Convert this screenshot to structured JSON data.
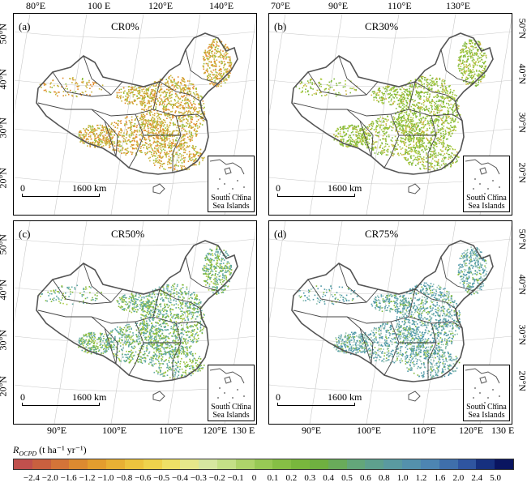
{
  "top_lon_left": [
    "80°E",
    "100 E",
    "120°E",
    "140°E"
  ],
  "top_lon_right": [
    "70°E",
    "90°E",
    "110°E",
    "130°E"
  ],
  "bottom_lon_left": [
    "90°E",
    "100°E",
    "110°E",
    "120°E",
    "130 E"
  ],
  "bottom_lon_right": [
    "90°E",
    "100°E",
    "110°E",
    "120°E",
    "130 E"
  ],
  "lat_left_top": [
    "50°N",
    "40°N",
    "30°N",
    "20°N"
  ],
  "lat_left_bottom": [
    "50°N",
    "40°N",
    "30°N",
    "20°N"
  ],
  "lat_right_top": [
    "50°N",
    "40°N",
    "30°N",
    "20°N"
  ],
  "lat_right_bottom": [
    "50°N",
    "40°N",
    "30°N",
    "20°N"
  ],
  "panels": [
    {
      "letter": "(a)",
      "title": "CR0%",
      "dominant": "#c9b33a",
      "secondary": "#e08a2a",
      "tertiary": "#8fbf3a"
    },
    {
      "letter": "(b)",
      "title": "CR30%",
      "dominant": "#7fb83a",
      "secondary": "#a9c93c",
      "tertiary": "#c9b33a"
    },
    {
      "letter": "(c)",
      "title": "CR50%",
      "dominant": "#5fa8a0",
      "secondary": "#7fb83a",
      "tertiary": "#a9c93c"
    },
    {
      "letter": "(d)",
      "title": "CR75%",
      "dominant": "#4f98a8",
      "secondary": "#8fc0b0",
      "tertiary": "#7fb83a"
    }
  ],
  "scale_zero": "0",
  "scale_label": "1600 km",
  "inset_label_1": "South China",
  "inset_label_2": "Sea Islands",
  "legend_title": "R",
  "legend_title_sub": "OCPD",
  "legend_title_units": " (t ha⁻¹ yr⁻¹)",
  "legend_ticks": [
    "−2.4",
    "−2.0",
    "−1.6",
    "−1.2",
    "−1.0",
    "−0.8",
    "−0.6",
    "−0.5",
    "−0.4",
    "−0.3",
    "−0.2",
    "−0.1",
    "0",
    "0.1",
    "0.2",
    "0.3",
    "0.4",
    "0.5",
    "0.6",
    "0.8",
    "1.0",
    "1.2",
    "1.6",
    "2.0",
    "2.4",
    "5.0"
  ],
  "legend_colors": [
    "#c0504d",
    "#c9603f",
    "#d47438",
    "#dc8a30",
    "#e39d2e",
    "#e8b034",
    "#edc33e",
    "#efd24c",
    "#efe066",
    "#e6e88a",
    "#d6e7a0",
    "#c4e087",
    "#aed46a",
    "#98c955",
    "#86bf45",
    "#79b73d",
    "#6fb040",
    "#69ab5a",
    "#63a67a",
    "#5ea08e",
    "#5a9aa0",
    "#5491ac",
    "#4d85b2",
    "#3f6fab",
    "#2f55a0",
    "#16307f",
    "#0a1560"
  ]
}
